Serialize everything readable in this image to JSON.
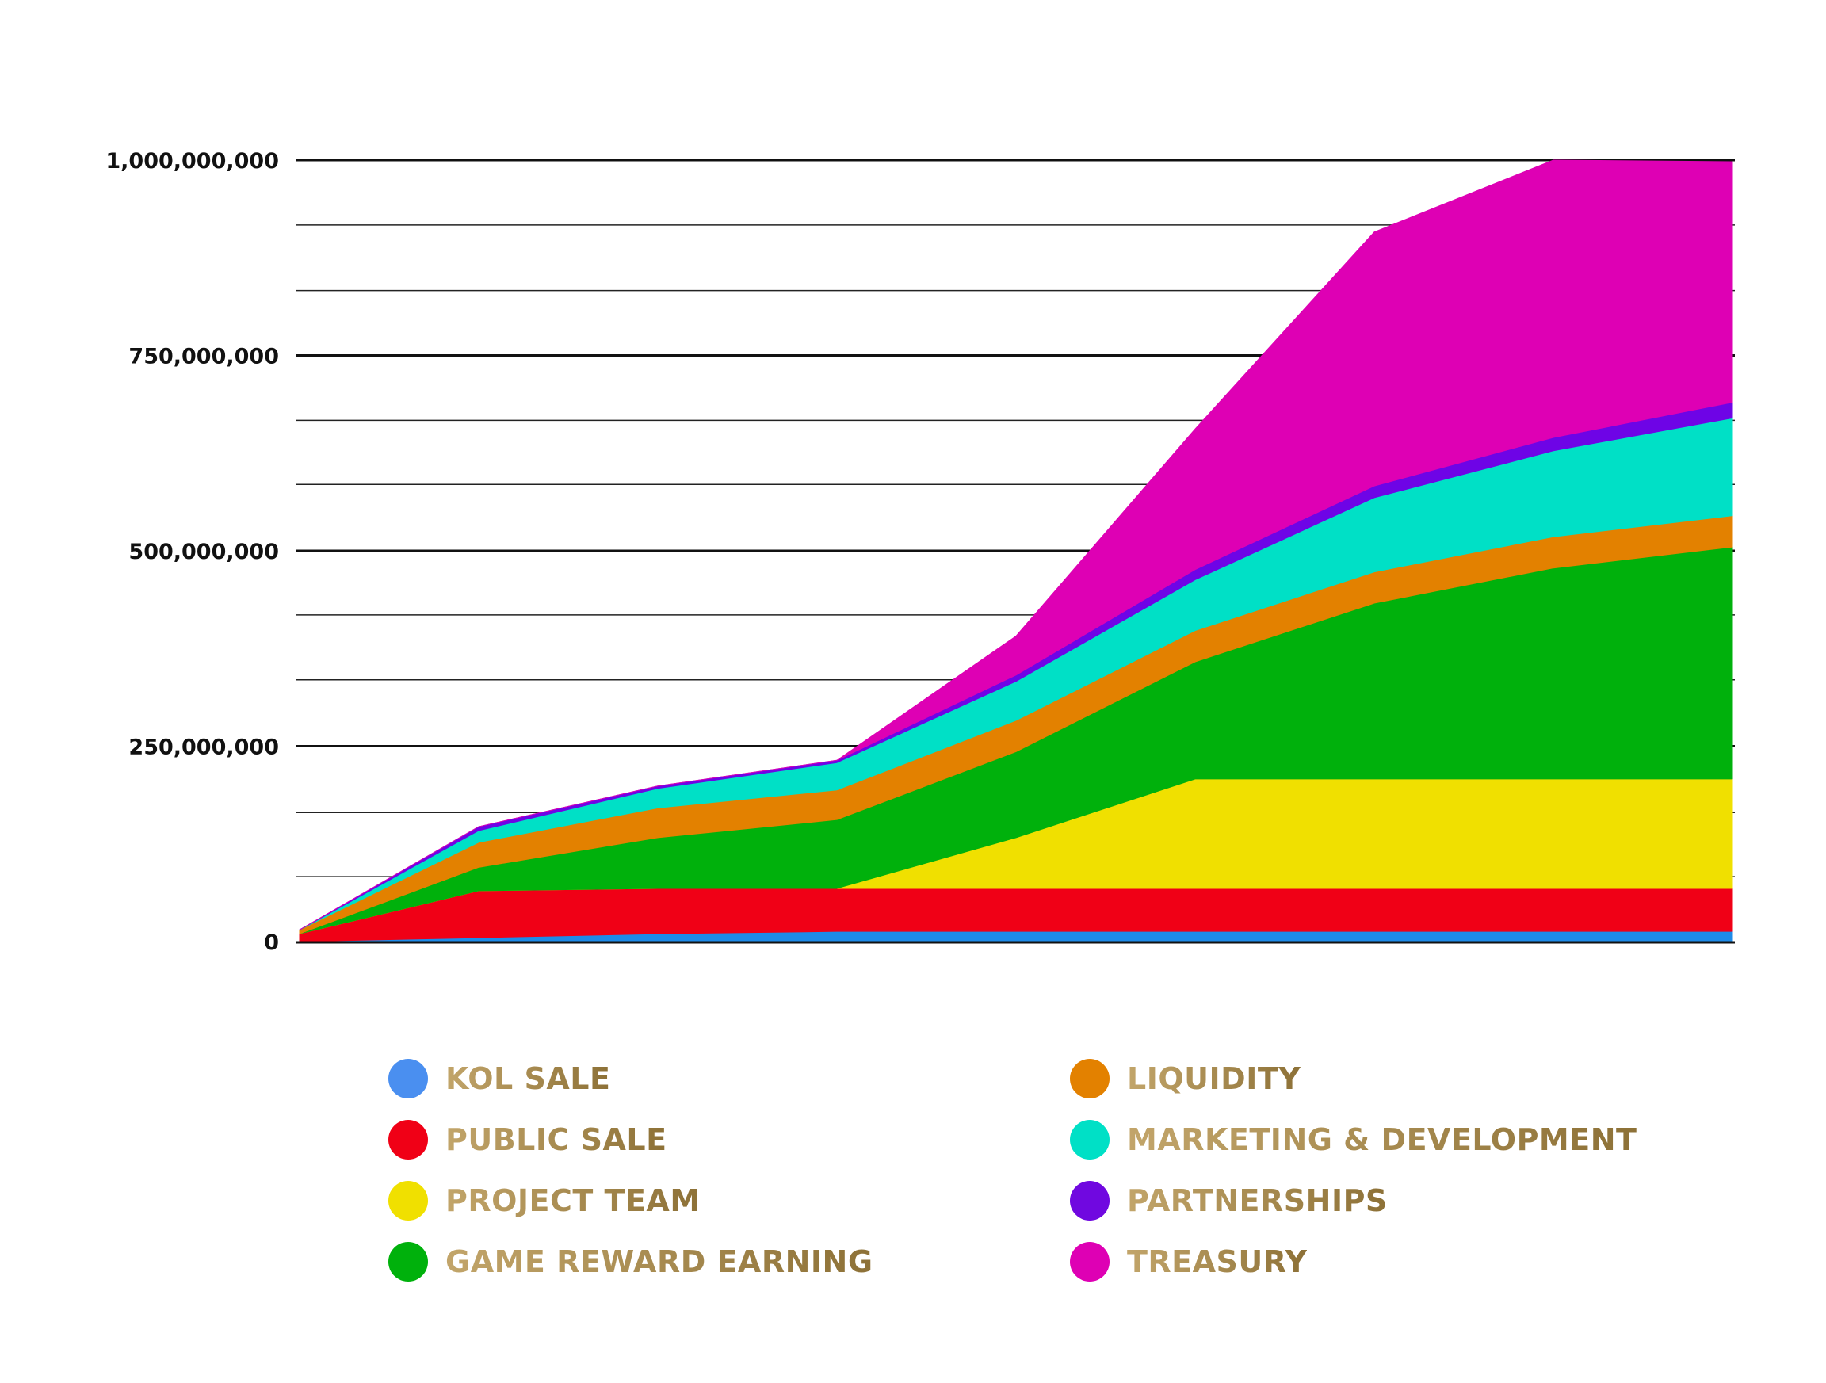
{
  "chart_data": {
    "type": "area",
    "stacked": true,
    "x": [
      0,
      1,
      2,
      3,
      4,
      5,
      6,
      7,
      8
    ],
    "ylim": [
      0,
      1000000000
    ],
    "yticks": [
      {
        "value": 0,
        "label": "0"
      },
      {
        "value": 250000000,
        "label": "250,000,000"
      },
      {
        "value": 500000000,
        "label": "500,000,000"
      },
      {
        "value": 750000000,
        "label": "750,000,000"
      },
      {
        "value": 1000000000,
        "label": "1,000,000,000"
      }
    ],
    "minor_gridlines": [
      83000000,
      165000000,
      335000000,
      418000000,
      585000000,
      667000000,
      833000000,
      917000000
    ],
    "grid": true,
    "legend_position": "bottom",
    "series": [
      {
        "name": "KOL SALE",
        "color": "#1e8be8",
        "swatch": "#4a8ff0",
        "values": [
          0,
          5000000,
          10000000,
          13000000,
          13000000,
          13000000,
          13000000,
          13000000,
          13000000
        ]
      },
      {
        "name": "PUBLIC SALE",
        "color": "#f00016",
        "swatch": "#f00016",
        "values": [
          10000000,
          60000000,
          58000000,
          55000000,
          55000000,
          55000000,
          55000000,
          55000000,
          55000000
        ]
      },
      {
        "name": "PROJECT TEAM",
        "color": "#f0e000",
        "swatch": "#f0e000",
        "values": [
          0,
          0,
          0,
          0,
          65000000,
          140000000,
          140000000,
          140000000,
          140000000
        ]
      },
      {
        "name": "GAME REWARD EARNING",
        "color": "#00b10c",
        "swatch": "#00b10c",
        "values": [
          0,
          30000000,
          65000000,
          88000000,
          110000000,
          150000000,
          225000000,
          270000000,
          297000000
        ]
      },
      {
        "name": "LIQUIDITY",
        "color": "#e38100",
        "swatch": "#e38100",
        "values": [
          5000000,
          32000000,
          38000000,
          38000000,
          40000000,
          40000000,
          40000000,
          40000000,
          40000000
        ]
      },
      {
        "name": "MARKETING & DEVELOPMENT",
        "color": "#00e0c6",
        "swatch": "#00e0c6",
        "values": [
          0,
          15000000,
          25000000,
          35000000,
          50000000,
          65000000,
          95000000,
          110000000,
          125000000
        ]
      },
      {
        "name": "PARTNERSHIPS",
        "color": "#6e04e6",
        "swatch": "#7008e0",
        "values": [
          0,
          5000000,
          3000000,
          3000000,
          8000000,
          13000000,
          15000000,
          17000000,
          20000000
        ]
      },
      {
        "name": "TREASURY",
        "color": "#de00b4",
        "swatch": "#de00b4",
        "values": [
          0,
          0,
          0,
          0,
          50000000,
          180000000,
          325000000,
          355000000,
          308000000
        ]
      }
    ]
  },
  "legend": {
    "items": [
      {
        "label": "KOL SALE",
        "color": "#4a8ff0"
      },
      {
        "label": "PUBLIC SALE",
        "color": "#f00016"
      },
      {
        "label": "PROJECT TEAM",
        "color": "#f0e000"
      },
      {
        "label": "GAME REWARD EARNING",
        "color": "#00b10c"
      },
      {
        "label": "LIQUIDITY",
        "color": "#e38100"
      },
      {
        "label": "MARKETING & DEVELOPMENT",
        "color": "#00e0c6"
      },
      {
        "label": "PARTNERSHIPS",
        "color": "#7008e0"
      },
      {
        "label": "TREASURY",
        "color": "#de00b4"
      }
    ]
  }
}
